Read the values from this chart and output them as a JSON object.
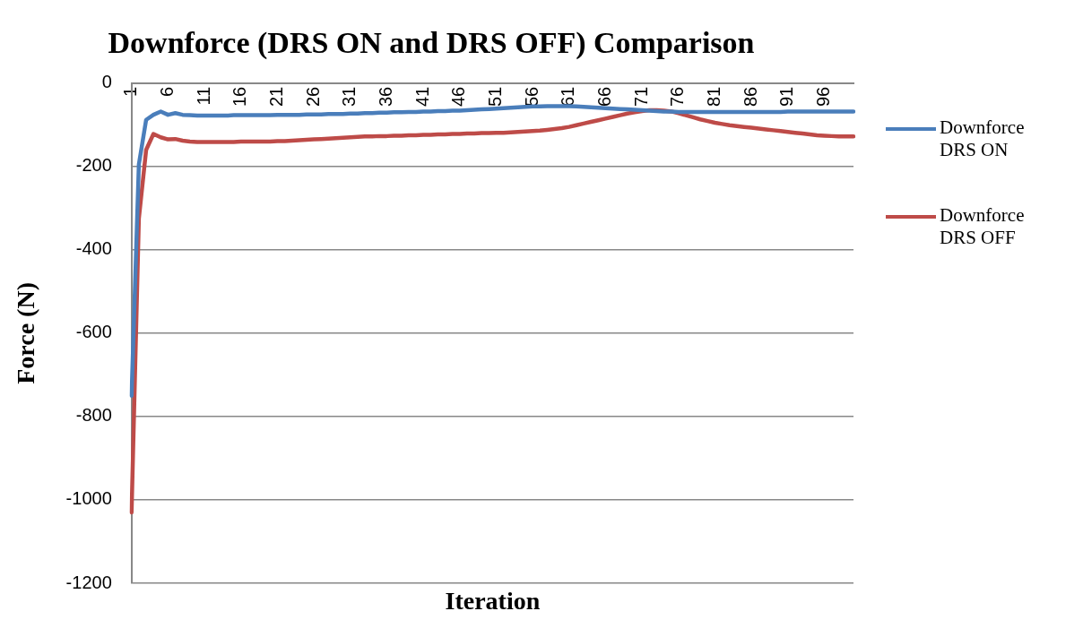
{
  "chart_data": {
    "type": "line",
    "title": "Downforce (DRS ON and DRS OFF) Comparison",
    "xlabel": "Iteration",
    "ylabel": "Force (N)",
    "categories": [
      "1",
      null,
      null,
      null,
      null,
      "6",
      null,
      null,
      null,
      null,
      "11",
      null,
      null,
      null,
      null,
      "16",
      null,
      null,
      null,
      null,
      "21",
      null,
      null,
      null,
      null,
      "26",
      null,
      null,
      null,
      null,
      "31",
      null,
      null,
      null,
      null,
      "36",
      null,
      null,
      null,
      null,
      "41",
      null,
      null,
      null,
      null,
      "46",
      null,
      null,
      null,
      null,
      "51",
      null,
      null,
      null,
      null,
      "56",
      null,
      null,
      null,
      null,
      "61",
      null,
      null,
      null,
      null,
      "66",
      null,
      null,
      null,
      null,
      "71",
      null,
      null,
      null,
      null,
      "76",
      null,
      null,
      null,
      null,
      "81",
      null,
      null,
      null,
      null,
      "86",
      null,
      null,
      null,
      null,
      "91",
      null,
      null,
      null,
      null,
      "96",
      null,
      null,
      null,
      null
    ],
    "series": [
      {
        "name": "Downforce DRS ON",
        "color": "#4a7ebb",
        "values": [
          -750,
          -195,
          -88,
          -76,
          -68,
          -76,
          -72,
          -76,
          -77,
          -78,
          -78,
          -78,
          -78,
          -78,
          -77,
          -77,
          -77,
          -77,
          -77,
          -77,
          -76,
          -76,
          -76,
          -76,
          -75,
          -75,
          -75,
          -74,
          -74,
          -74,
          -73,
          -73,
          -72,
          -72,
          -71,
          -71,
          -70,
          -70,
          -69,
          -69,
          -68,
          -68,
          -67,
          -67,
          -66,
          -66,
          -65,
          -64,
          -63,
          -62,
          -61,
          -60,
          -59,
          -58,
          -57,
          -56,
          -56,
          -55,
          -55,
          -55,
          -55,
          -56,
          -57,
          -58,
          -59,
          -60,
          -61,
          -62,
          -63,
          -64,
          -65,
          -66,
          -67,
          -68,
          -68,
          -69,
          -69,
          -69,
          -69,
          -69,
          -69,
          -69,
          -69,
          -69,
          -69,
          -69,
          -69,
          -69,
          -69,
          -69,
          -68,
          -68,
          -68,
          -68,
          -68,
          -68,
          -68,
          -68,
          -68,
          -68
        ]
      },
      {
        "name": "Downforce DRS OFF",
        "color": "#be4b48",
        "values": [
          -1030,
          -325,
          -160,
          -122,
          -130,
          -135,
          -134,
          -138,
          -140,
          -141,
          -141,
          -141,
          -141,
          -141,
          -141,
          -140,
          -140,
          -140,
          -140,
          -140,
          -139,
          -139,
          -138,
          -137,
          -136,
          -135,
          -134,
          -133,
          -132,
          -131,
          -130,
          -129,
          -128,
          -128,
          -127,
          -127,
          -126,
          -126,
          -125,
          -125,
          -124,
          -124,
          -123,
          -123,
          -122,
          -122,
          -121,
          -121,
          -120,
          -120,
          -119,
          -119,
          -118,
          -117,
          -116,
          -115,
          -114,
          -112,
          -110,
          -108,
          -105,
          -101,
          -97,
          -93,
          -89,
          -85,
          -81,
          -77,
          -73,
          -70,
          -67,
          -65,
          -65,
          -66,
          -68,
          -72,
          -77,
          -82,
          -87,
          -91,
          -95,
          -98,
          -101,
          -103,
          -105,
          -107,
          -109,
          -111,
          -113,
          -115,
          -117,
          -119,
          -121,
          -123,
          -125,
          -126,
          -127,
          -128,
          -128,
          -128
        ]
      }
    ],
    "ylim": [
      -1200,
      0
    ],
    "yticks": [
      -1200,
      -1000,
      -800,
      -600,
      -400,
      -200,
      0
    ],
    "grid": "y",
    "legend": "right",
    "marker": "none",
    "line_style": "solid"
  }
}
